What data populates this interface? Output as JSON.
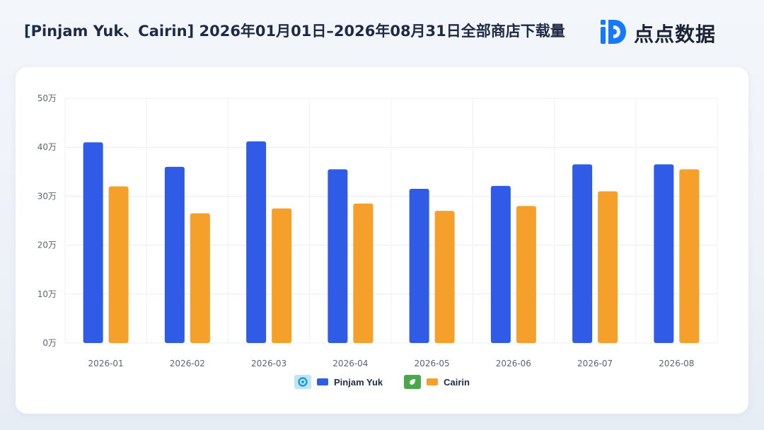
{
  "header": {
    "title": "[Pinjam Yuk、Cairin]  2026年01月01日–2026年08月31日全部商店下载量",
    "brand_name": "点点数据",
    "brand_logo_icon": "diandian-logo-icon"
  },
  "colors": {
    "pinjam_yuk": "#2f5be7",
    "cairin": "#f5a02a",
    "brand_blue": "#1677ff"
  },
  "legend": {
    "items": [
      {
        "label": "Pinjam Yuk",
        "icon": "pinjam-yuk-app-icon"
      },
      {
        "label": "Cairin",
        "icon": "cairin-app-icon"
      }
    ]
  },
  "chart_data": {
    "type": "bar",
    "categories": [
      "2026-01",
      "2026-02",
      "2026-03",
      "2026-04",
      "2026-05",
      "2026-06",
      "2026-07",
      "2026-08"
    ],
    "series": [
      {
        "name": "Pinjam Yuk",
        "values": [
          41.0,
          36.0,
          41.2,
          35.5,
          31.5,
          32.1,
          36.5,
          36.5
        ]
      },
      {
        "name": "Cairin",
        "values": [
          32.0,
          26.5,
          27.5,
          28.5,
          27.0,
          28.0,
          31.0,
          35.5
        ]
      }
    ],
    "ylim": [
      0,
      50
    ],
    "yticks": [
      0,
      10,
      20,
      30,
      40,
      50
    ],
    "ytick_labels": [
      "0万",
      "10万",
      "20万",
      "30万",
      "40万",
      "50万"
    ],
    "grid": true,
    "legend_position": "bottom"
  }
}
